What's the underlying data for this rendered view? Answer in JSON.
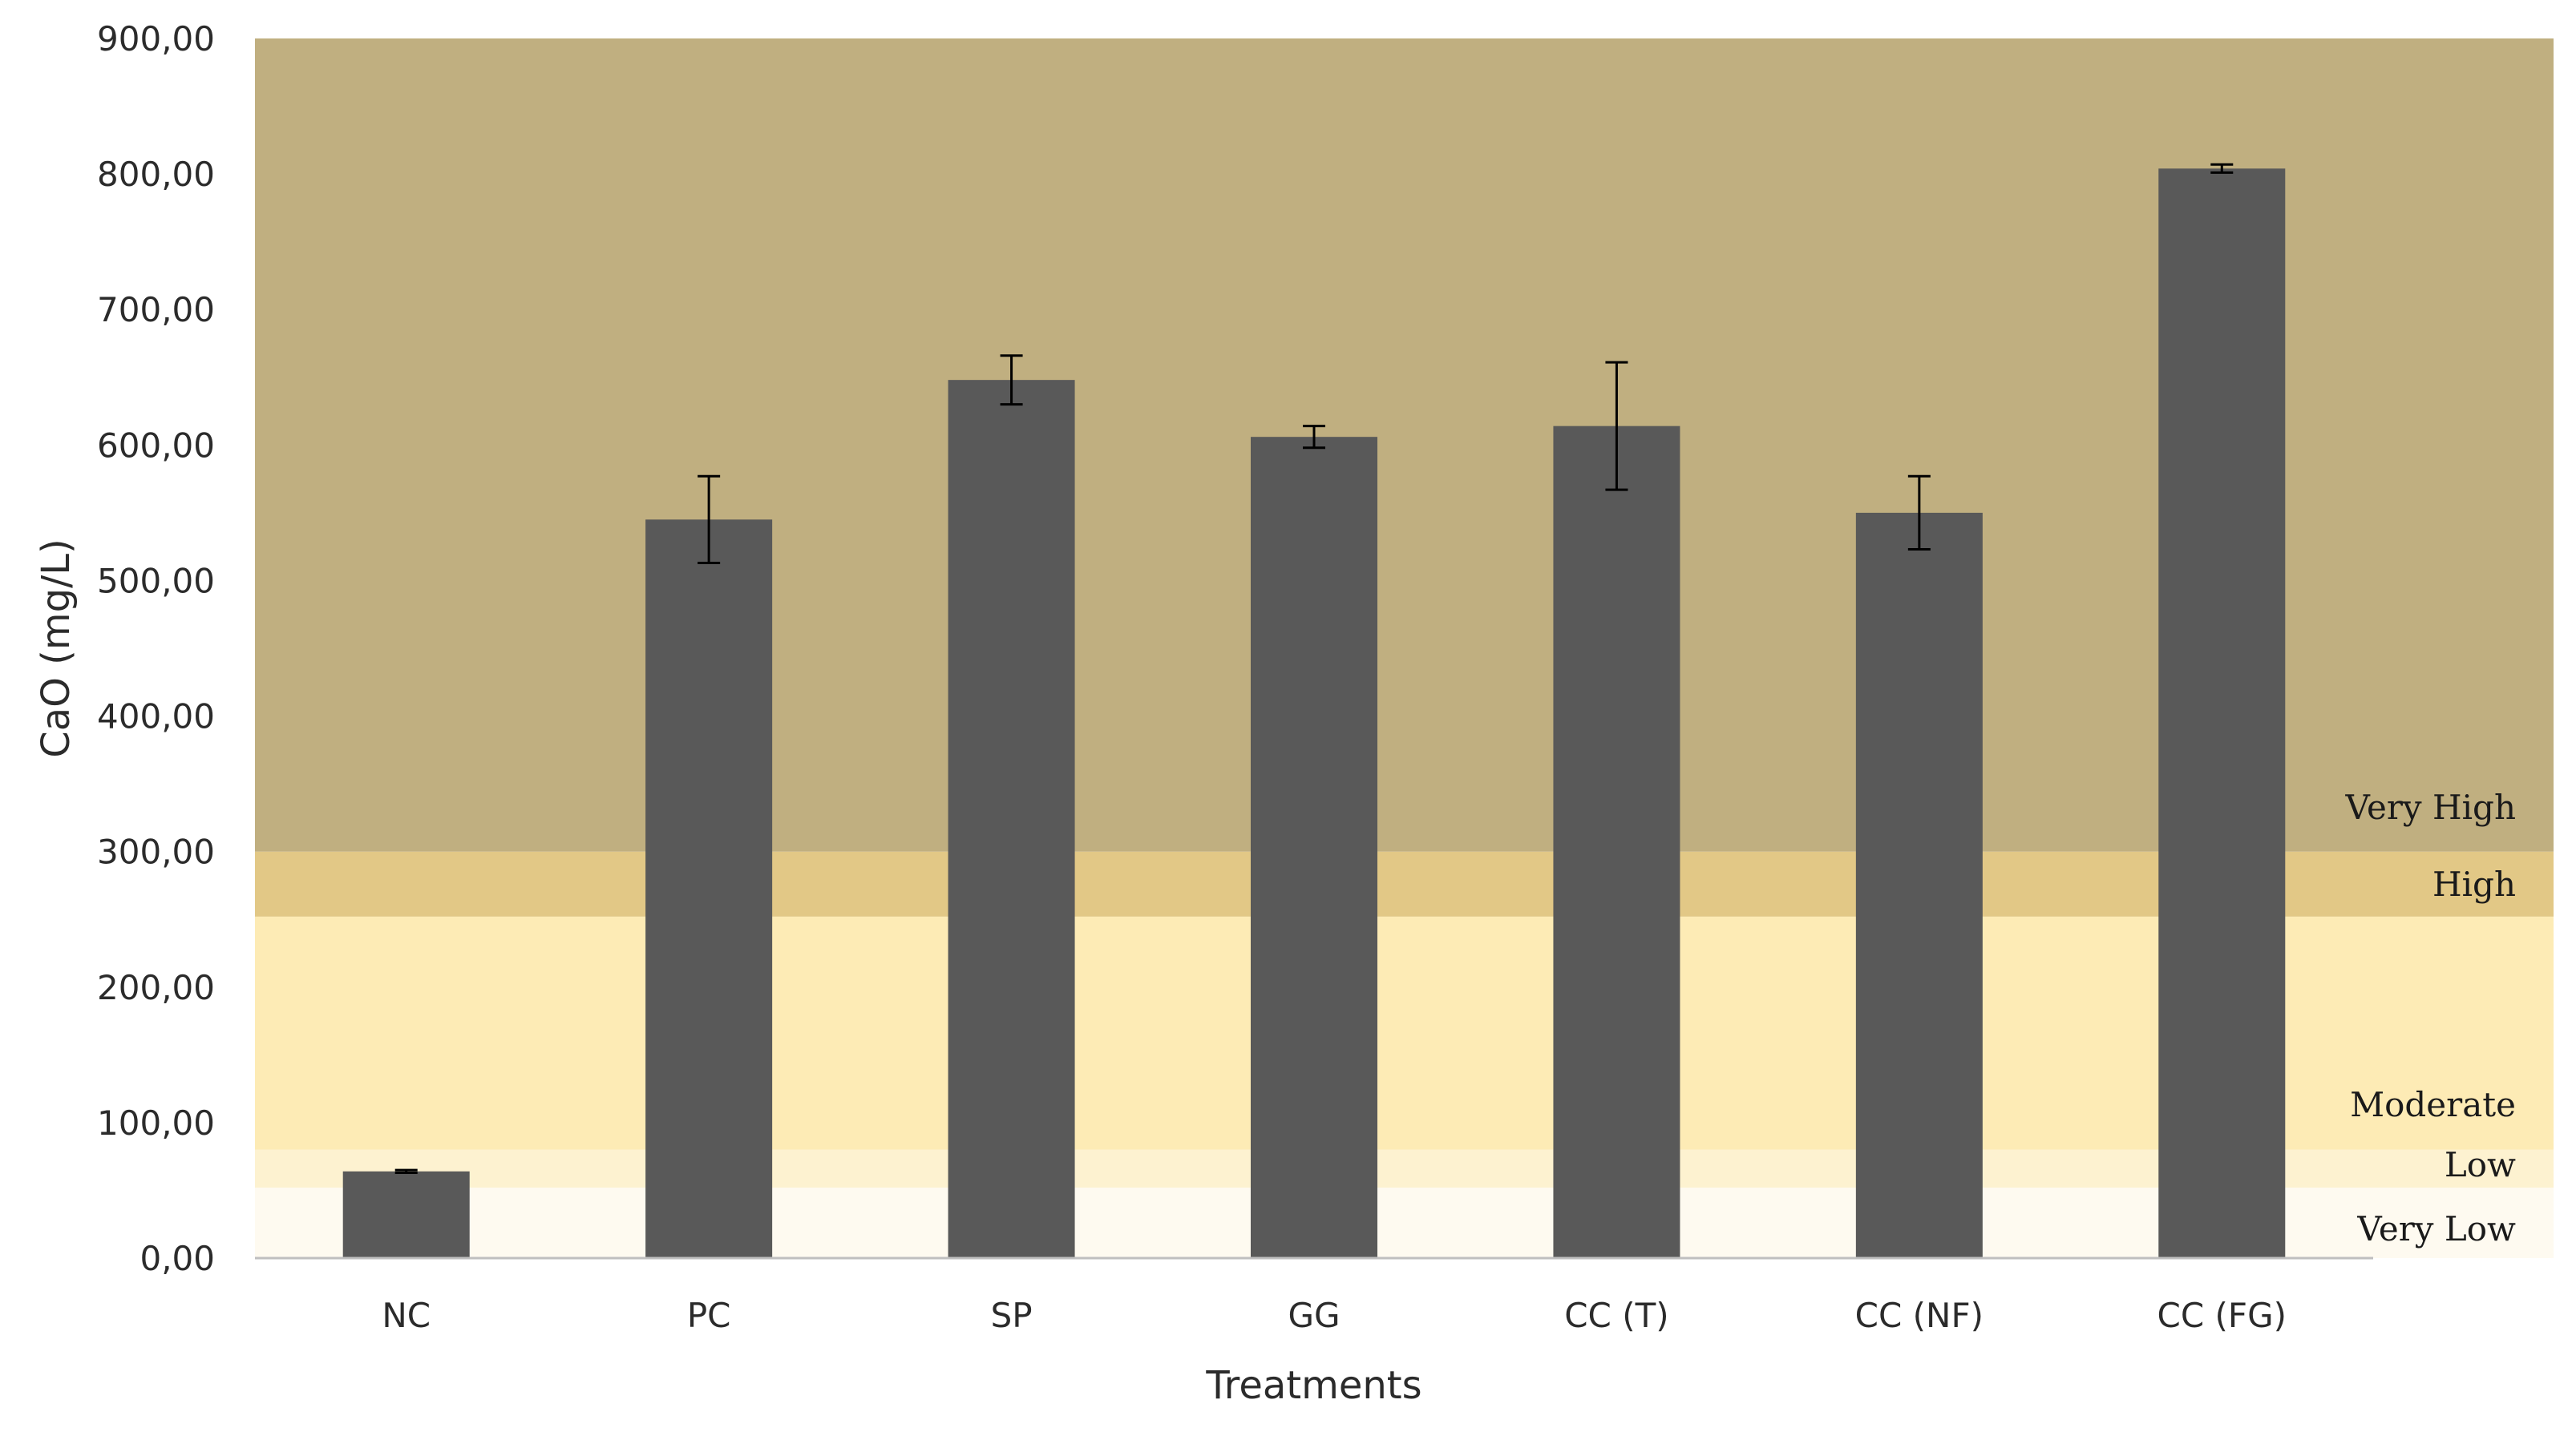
{
  "chart_data": {
    "type": "bar",
    "xlabel": "Treatments",
    "ylabel": "CaO (mg/L)",
    "ylim": [
      0,
      900
    ],
    "yticks": [
      "0,00",
      "100,00",
      "200,00",
      "300,00",
      "400,00",
      "500,00",
      "600,00",
      "700,00",
      "800,00",
      "900,00"
    ],
    "categories": [
      "NC",
      "PC",
      "SP",
      "GG",
      "CC (T)",
      "CC (NF)",
      "CC (FG)"
    ],
    "values": [
      64,
      545,
      648,
      606,
      614,
      550,
      804
    ],
    "errors": [
      1,
      32,
      18,
      8,
      47,
      27,
      3
    ],
    "bar_color": "#595959",
    "grid": false,
    "bands": [
      {
        "label": "Very Low",
        "from": 0,
        "to": 52,
        "color": "#fefaf0"
      },
      {
        "label": "Low",
        "from": 52,
        "to": 80,
        "color": "#fdf2d0"
      },
      {
        "label": "Moderate",
        "from": 80,
        "to": 252,
        "color": "#fdebb5"
      },
      {
        "label": "High",
        "from": 252,
        "to": 300,
        "color": "#e2c886"
      },
      {
        "label": "Very High",
        "from": 300,
        "to": 900,
        "color": "#c0af80"
      }
    ]
  }
}
